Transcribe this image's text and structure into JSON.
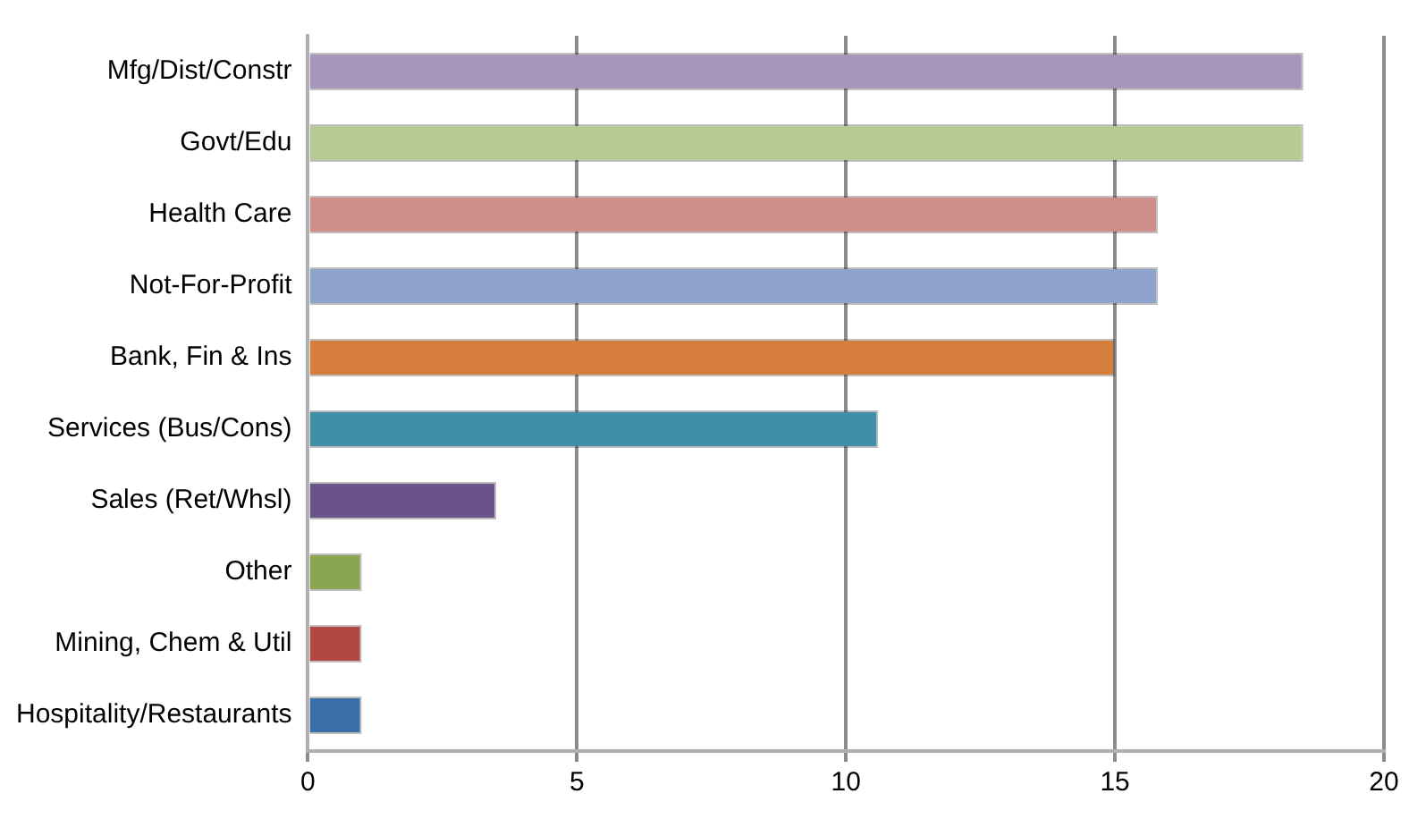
{
  "chart_data": {
    "type": "bar",
    "orientation": "horizontal",
    "categories": [
      "Mfg/Dist/Constr",
      "Govt/Edu",
      "Health Care",
      "Not-For-Profit",
      "Bank, Fin & Ins",
      "Services (Bus/Cons)",
      "Sales (Ret/Whsl)",
      "Other",
      "Mining, Chem & Util",
      "Hospitality/Restaurants"
    ],
    "values": [
      18.5,
      18.5,
      15.8,
      15.8,
      15,
      10.6,
      3.5,
      1,
      1,
      1
    ],
    "colors": [
      "#a597bb",
      "#b5cb93",
      "#cd8d8b",
      "#8fa4cc",
      "#d67f3d",
      "#418fa6",
      "#6b528a",
      "#8aa650",
      "#b04743",
      "#3a6ea6"
    ],
    "xlim": [
      0,
      20
    ],
    "xticks": [
      0,
      5,
      10,
      15,
      20
    ],
    "grid": "x",
    "legend": false
  }
}
